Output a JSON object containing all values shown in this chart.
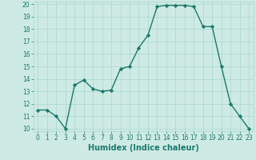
{
  "xlabel": "Humidex (Indice chaleur)",
  "x": [
    0,
    1,
    2,
    3,
    4,
    5,
    6,
    7,
    8,
    9,
    10,
    11,
    12,
    13,
    14,
    15,
    16,
    17,
    18,
    19,
    20,
    21,
    22,
    23
  ],
  "y": [
    11.5,
    11.5,
    11.0,
    10.0,
    13.5,
    13.9,
    13.2,
    13.0,
    13.1,
    14.8,
    15.0,
    16.5,
    17.5,
    19.8,
    19.9,
    19.9,
    19.9,
    19.8,
    18.2,
    18.2,
    15.0,
    12.0,
    11.0,
    10.0
  ],
  "line_color": "#1a7a6e",
  "marker": "D",
  "markersize": 2.2,
  "linewidth": 1.0,
  "ylim": [
    9.8,
    20.2
  ],
  "xlim": [
    -0.5,
    23.5
  ],
  "yticks": [
    10,
    11,
    12,
    13,
    14,
    15,
    16,
    17,
    18,
    19,
    20
  ],
  "xticks": [
    0,
    1,
    2,
    3,
    4,
    5,
    6,
    7,
    8,
    9,
    10,
    11,
    12,
    13,
    14,
    15,
    16,
    17,
    18,
    19,
    20,
    21,
    22,
    23
  ],
  "bg_color": "#ceeae4",
  "grid_color": "#a8d8cf",
  "tick_fontsize": 5.5,
  "xlabel_fontsize": 7,
  "xlabel_fontweight": "bold",
  "tick_color": "#1a7a6e"
}
